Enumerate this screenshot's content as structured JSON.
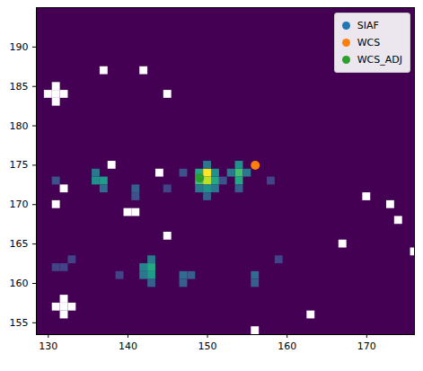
{
  "chart_data": {
    "type": "heatmap",
    "xlim": [
      128.5,
      176
    ],
    "ylim": [
      153.5,
      195
    ],
    "xticks": [
      130,
      140,
      150,
      160,
      170
    ],
    "yticks": [
      155,
      160,
      165,
      170,
      175,
      180,
      185,
      190
    ],
    "color_range": [
      0,
      1
    ],
    "cells": [
      [
        150,
        174,
        1.0
      ],
      [
        150,
        173,
        0.9
      ],
      [
        149,
        173,
        0.7
      ],
      [
        151,
        173,
        0.6
      ],
      [
        149,
        174,
        0.6
      ],
      [
        151,
        174,
        0.5
      ],
      [
        150,
        172,
        0.5
      ],
      [
        149,
        172,
        0.4
      ],
      [
        151,
        172,
        0.4
      ],
      [
        150,
        175,
        0.4
      ],
      [
        150,
        171,
        0.3
      ],
      [
        154,
        174,
        0.7
      ],
      [
        154,
        173,
        0.6
      ],
      [
        154,
        175,
        0.5
      ],
      [
        155,
        174,
        0.4
      ],
      [
        153,
        174,
        0.4
      ],
      [
        154,
        172,
        0.3
      ],
      [
        137,
        173,
        0.55
      ],
      [
        136,
        173,
        0.5
      ],
      [
        136,
        174,
        0.4
      ],
      [
        137,
        172,
        0.35
      ],
      [
        143,
        162,
        0.6
      ],
      [
        143,
        161,
        0.55
      ],
      [
        142,
        162,
        0.45
      ],
      [
        143,
        163,
        0.4
      ],
      [
        143,
        160,
        0.3
      ],
      [
        142,
        161,
        0.4
      ],
      [
        147,
        161,
        0.35
      ],
      [
        147,
        160,
        0.3
      ],
      [
        148,
        161,
        0.3
      ],
      [
        156,
        161,
        0.35
      ],
      [
        156,
        160,
        0.3
      ],
      [
        141,
        172,
        0.3
      ],
      [
        141,
        171,
        0.25
      ],
      [
        131,
        173,
        0.25
      ],
      [
        131,
        162,
        0.2
      ],
      [
        132,
        162,
        0.2
      ],
      [
        133,
        163,
        0.2
      ],
      [
        147,
        174,
        0.25
      ],
      [
        152,
        173,
        0.25
      ],
      [
        145,
        172,
        0.2
      ],
      [
        139,
        161,
        0.2
      ],
      [
        159,
        163,
        0.2
      ],
      [
        158,
        173,
        0.2
      ]
    ],
    "masked": [
      [
        131,
        185
      ],
      [
        130,
        184
      ],
      [
        131,
        184
      ],
      [
        132,
        184
      ],
      [
        131,
        183
      ],
      [
        137,
        187
      ],
      [
        142,
        187
      ],
      [
        145,
        184
      ],
      [
        138,
        175
      ],
      [
        144,
        174
      ],
      [
        132,
        172
      ],
      [
        131,
        170
      ],
      [
        140,
        169
      ],
      [
        141,
        169
      ],
      [
        145,
        166
      ],
      [
        170,
        171
      ],
      [
        173,
        170
      ],
      [
        174,
        168
      ],
      [
        167,
        165
      ],
      [
        176,
        164
      ],
      [
        132,
        158
      ],
      [
        131,
        157
      ],
      [
        132,
        157
      ],
      [
        133,
        157
      ],
      [
        132,
        156
      ],
      [
        163,
        156
      ],
      [
        156,
        154
      ]
    ],
    "series": [
      {
        "name": "SIAF",
        "color": "#1f77b4",
        "x": [
          149
        ],
        "y": [
          173.4
        ]
      },
      {
        "name": "WCS",
        "color": "#ff7f0e",
        "x": [
          156
        ],
        "y": [
          175
        ]
      },
      {
        "name": "WCS_ADJ",
        "color": "#2ca02c",
        "x": [
          149
        ],
        "y": [
          173.4
        ]
      }
    ],
    "marker": "circle",
    "legend": "upper right"
  }
}
